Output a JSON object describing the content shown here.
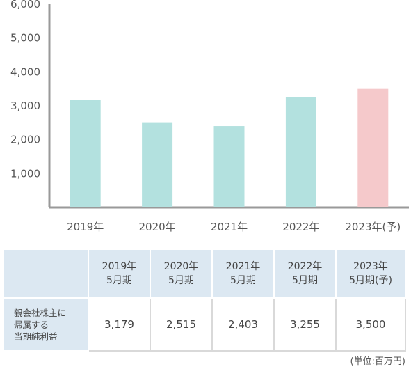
{
  "chart_data": {
    "type": "bar",
    "categories": [
      "2019年",
      "2020年",
      "2021年",
      "2022年",
      "2023年(予)"
    ],
    "values": [
      3179,
      2515,
      2403,
      3255,
      3500
    ],
    "forecast_index": 4,
    "colors": {
      "actual": "#b3e1df",
      "forecast": "#f5c9cb",
      "axis": "#999999"
    },
    "ylim": [
      0,
      6000
    ],
    "yticks": [
      "1,000",
      "2,000",
      "3,000",
      "4,000",
      "5,000",
      "6,000"
    ],
    "ytick_values": [
      1000,
      2000,
      3000,
      4000,
      5000,
      6000
    ]
  },
  "table": {
    "headers": [
      [
        "2019年",
        "5月期"
      ],
      [
        "2020年",
        "5月期"
      ],
      [
        "2021年",
        "5月期"
      ],
      [
        "2022年",
        "5月期"
      ],
      [
        "2023年",
        "5月期(予)"
      ]
    ],
    "row_label": [
      "親会社株主に",
      "帰属する",
      "当期純利益"
    ],
    "values": [
      "3,179",
      "2,515",
      "2,403",
      "3,255",
      "3,500"
    ]
  },
  "unit_note": "(単位:百万円)"
}
